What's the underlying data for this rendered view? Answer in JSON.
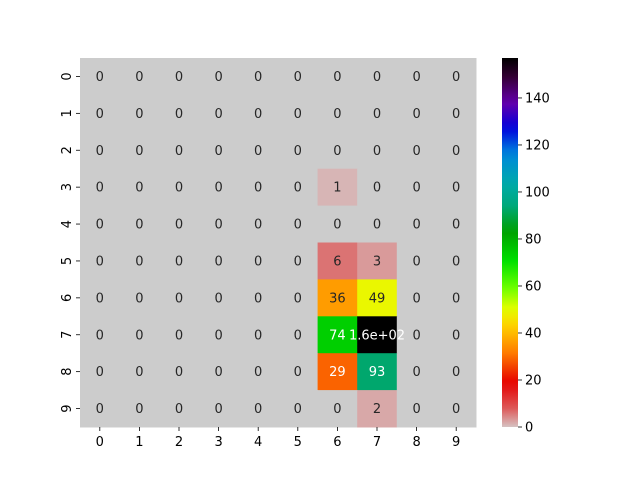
{
  "chart_data": {
    "type": "heatmap",
    "title": "",
    "xlabel": "",
    "ylabel": "",
    "x_categories": [
      "0",
      "1",
      "2",
      "3",
      "4",
      "5",
      "6",
      "7",
      "8",
      "9"
    ],
    "y_categories": [
      "0",
      "1",
      "2",
      "3",
      "4",
      "5",
      "6",
      "7",
      "8",
      "9"
    ],
    "values": [
      [
        0,
        0,
        0,
        0,
        0,
        0,
        0,
        0,
        0,
        0
      ],
      [
        0,
        0,
        0,
        0,
        0,
        0,
        0,
        0,
        0,
        0
      ],
      [
        0,
        0,
        0,
        0,
        0,
        0,
        0,
        0,
        0,
        0
      ],
      [
        0,
        0,
        0,
        0,
        0,
        0,
        1,
        0,
        0,
        0
      ],
      [
        0,
        0,
        0,
        0,
        0,
        0,
        0,
        0,
        0,
        0
      ],
      [
        0,
        0,
        0,
        0,
        0,
        0,
        6,
        3,
        0,
        0
      ],
      [
        0,
        0,
        0,
        0,
        0,
        0,
        36,
        49,
        0,
        0
      ],
      [
        0,
        0,
        0,
        0,
        0,
        0,
        74,
        157,
        0,
        0
      ],
      [
        0,
        0,
        0,
        0,
        0,
        0,
        29,
        93,
        0,
        0
      ],
      [
        0,
        0,
        0,
        0,
        0,
        0,
        0,
        2,
        0,
        0
      ]
    ],
    "annotations": [
      [
        "0",
        "0",
        "0",
        "0",
        "0",
        "0",
        "0",
        "0",
        "0",
        "0"
      ],
      [
        "0",
        "0",
        "0",
        "0",
        "0",
        "0",
        "0",
        "0",
        "0",
        "0"
      ],
      [
        "0",
        "0",
        "0",
        "0",
        "0",
        "0",
        "0",
        "0",
        "0",
        "0"
      ],
      [
        "0",
        "0",
        "0",
        "0",
        "0",
        "0",
        "1",
        "0",
        "0",
        "0"
      ],
      [
        "0",
        "0",
        "0",
        "0",
        "0",
        "0",
        "0",
        "0",
        "0",
        "0"
      ],
      [
        "0",
        "0",
        "0",
        "0",
        "0",
        "0",
        "6",
        "3",
        "0",
        "0"
      ],
      [
        "0",
        "0",
        "0",
        "0",
        "0",
        "0",
        "36",
        "49",
        "0",
        "0"
      ],
      [
        "0",
        "0",
        "0",
        "0",
        "0",
        "0",
        "74",
        "1.6e+02",
        "0",
        "0"
      ],
      [
        "0",
        "0",
        "0",
        "0",
        "0",
        "0",
        "29",
        "93",
        "0",
        "0"
      ],
      [
        "0",
        "0",
        "0",
        "0",
        "0",
        "0",
        "0",
        "2",
        "0",
        "0"
      ]
    ],
    "colormap": "nipy_spectral_r",
    "zero_color": "#cccccc",
    "colorbar": {
      "vmin": 0,
      "vmax": 157,
      "ticks": [
        "0",
        "20",
        "40",
        "60",
        "80",
        "100",
        "120",
        "140"
      ]
    },
    "grid": false,
    "legend": "colorbar-right"
  }
}
